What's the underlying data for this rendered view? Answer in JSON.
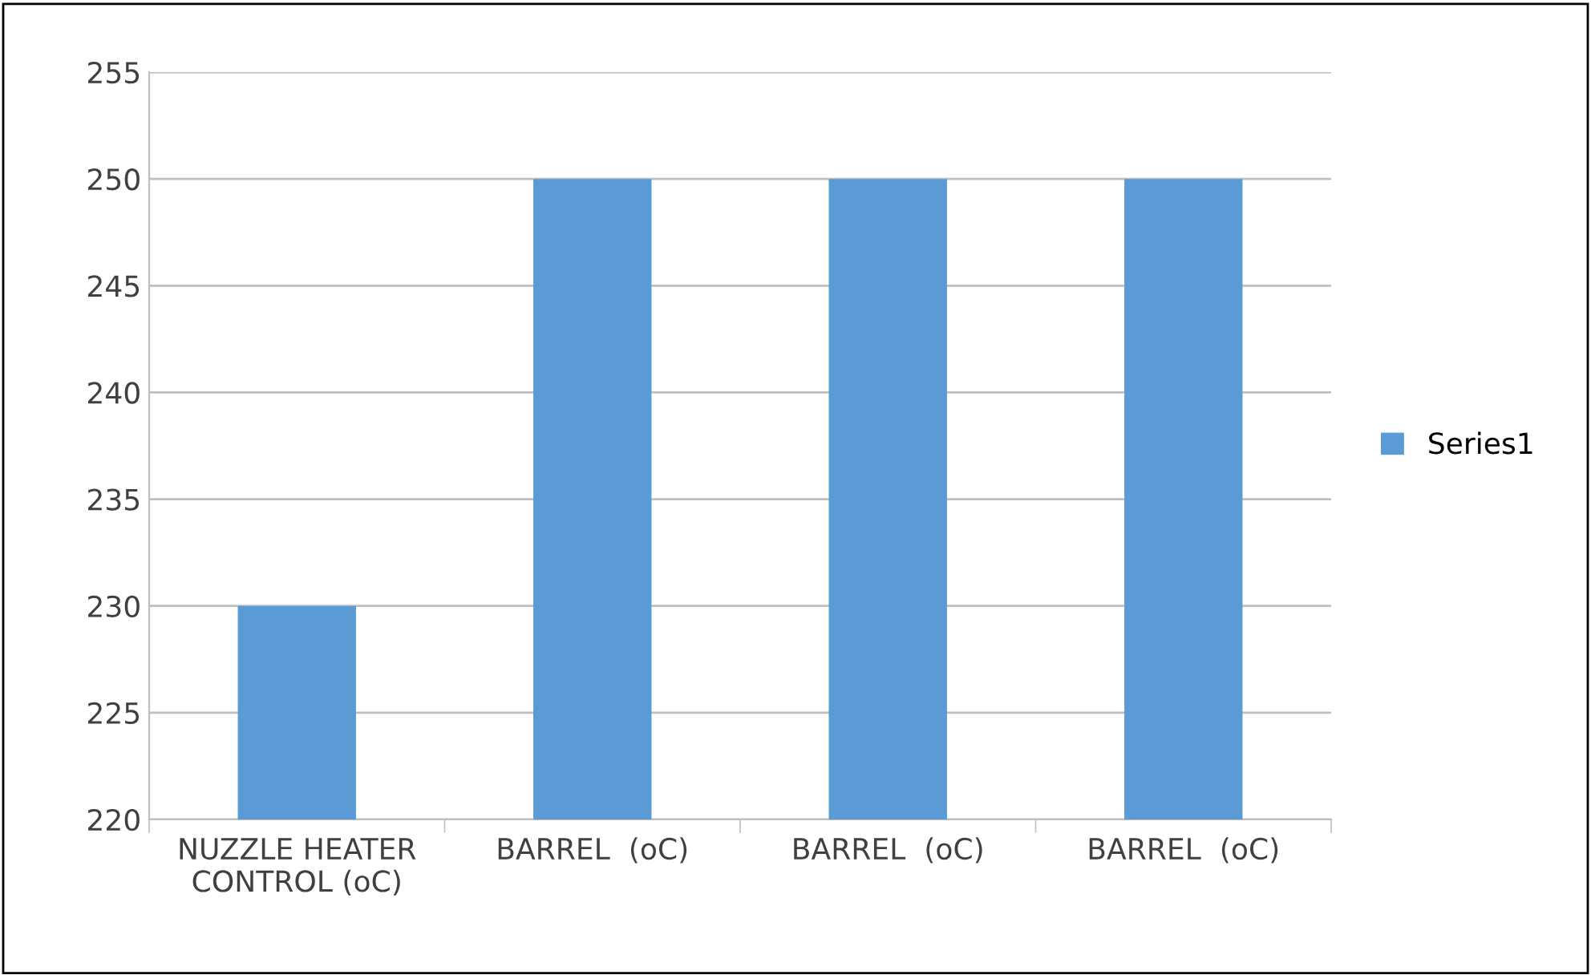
{
  "chart_data": {
    "type": "bar",
    "categories": [
      "NUZZLE HEATER\nCONTROL (oC)",
      "BARREL  (oC)",
      "BARREL  (oC)",
      "BARREL  (oC)"
    ],
    "series": [
      {
        "name": "Series1",
        "color": "#5b9bd5",
        "values": [
          230,
          250,
          250,
          250
        ]
      }
    ],
    "ylim": [
      220,
      255
    ],
    "yticks": [
      220,
      225,
      230,
      235,
      240,
      245,
      250,
      255
    ],
    "grid": "y",
    "legend": "right"
  }
}
